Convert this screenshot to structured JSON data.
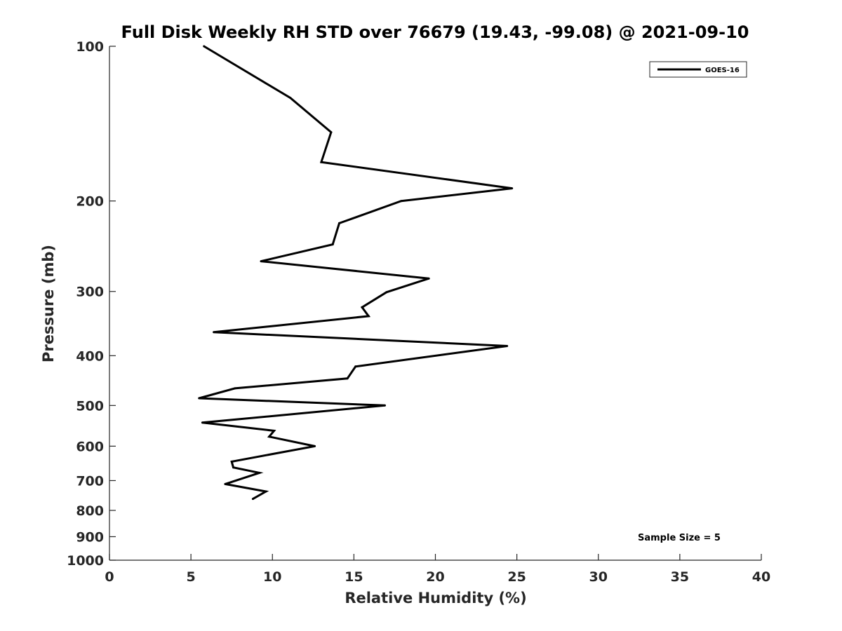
{
  "chart_data": {
    "type": "line",
    "title": "Full Disk Weekly RH STD over 76679 (19.43, -99.08) @ 2021-09-10",
    "xlabel": "Relative Humidity (%)",
    "ylabel": "Pressure (mb)",
    "xlim": [
      0,
      40
    ],
    "ylim": [
      100,
      1000
    ],
    "yscale": "log",
    "y_reversed": true,
    "x_ticks": [
      0,
      5,
      10,
      15,
      20,
      25,
      30,
      35,
      40
    ],
    "y_ticks": [
      100,
      200,
      300,
      400,
      500,
      600,
      700,
      800,
      900,
      1000
    ],
    "grid": false,
    "legend": {
      "position": "top-right",
      "entries": [
        "GOES-16"
      ]
    },
    "annotation": "Sample Size = 5",
    "series": [
      {
        "name": "GOES-16",
        "color": "#000000",
        "x": [
          5.8,
          11.1,
          13.6,
          13.0,
          24.7,
          17.9,
          14.1,
          13.7,
          9.3,
          19.6,
          17.0,
          15.5,
          15.9,
          6.4,
          24.4,
          15.1,
          14.6,
          7.7,
          5.5,
          16.9,
          5.7,
          10.1,
          9.8,
          12.6,
          7.5,
          7.6,
          9.2,
          7.1,
          9.6,
          8.8
        ],
        "y": [
          100,
          126,
          147,
          168,
          189,
          200,
          221,
          243,
          262,
          283,
          301,
          322,
          335,
          360,
          383,
          420,
          443,
          463,
          484,
          500,
          540,
          560,
          575,
          600,
          643,
          660,
          676,
          711,
          735,
          760
        ]
      }
    ]
  }
}
